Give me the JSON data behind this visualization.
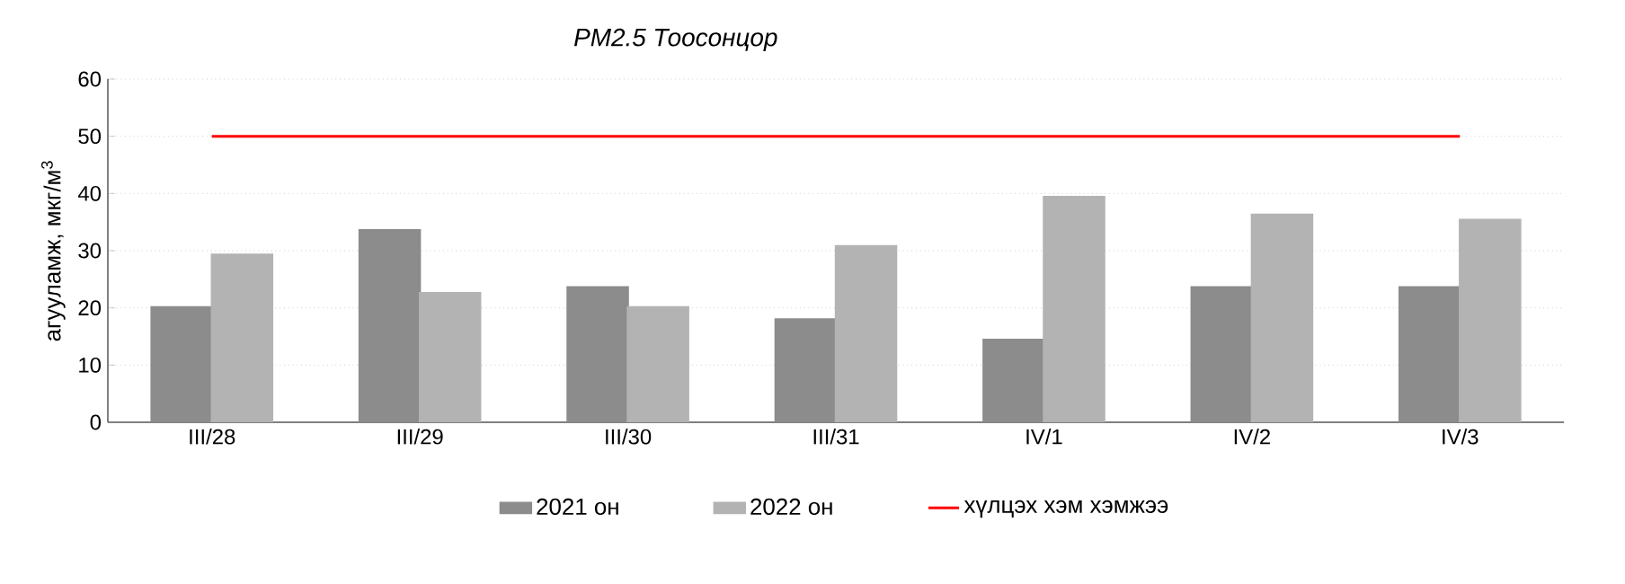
{
  "chart_data": {
    "type": "bar",
    "title": "PM2.5 Тоосонцор",
    "ylabel": "агууламж, мкг/м$^{3}$",
    "categories": [
      "III/28",
      "III/29",
      "III/30",
      "III/31",
      "IV/1",
      "IV/2",
      "IV/3"
    ],
    "series": [
      {
        "name": "2021 он",
        "color": "#8c8c8c",
        "values": [
          20.1,
          33.6,
          23.6,
          18.0,
          14.4,
          23.6,
          23.6
        ]
      },
      {
        "name": "2022 он",
        "color": "#b3b3b3",
        "values": [
          29.3,
          22.6,
          20.1,
          30.8,
          39.4,
          36.3,
          35.4
        ]
      },
      {
        "name": "хүлцэх хэм хэмжээ",
        "type": "line",
        "color": "#ff0000",
        "values": [
          50,
          50,
          50,
          50,
          50,
          50,
          50
        ]
      }
    ],
    "ylim": [
      0,
      60
    ],
    "yticks": [
      0,
      10,
      20,
      30,
      40,
      50,
      60
    ],
    "grid": "y",
    "legend": "bottom",
    "marker": "none",
    "line_style": "solid"
  }
}
